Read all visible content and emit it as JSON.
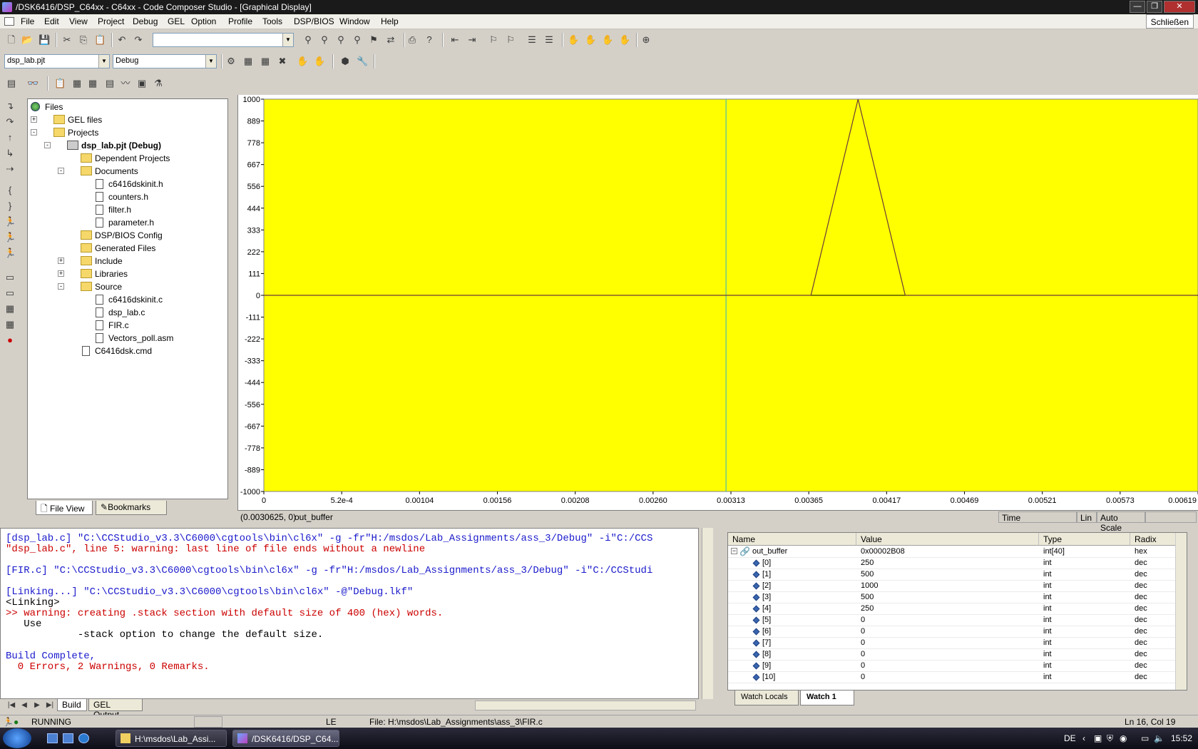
{
  "window": {
    "title": "/DSK6416/DSP_C64xx - C64xx - Code Composer Studio - [Graphical Display]",
    "close_tooltip": "Schließen",
    "min_icon": "minimize-icon",
    "restore_icon": "restore-icon",
    "close_icon": "close-icon"
  },
  "menu": [
    "File",
    "Edit",
    "View",
    "Project",
    "Debug",
    "GEL",
    "Option",
    "Profile",
    "Tools",
    "DSP/BIOS",
    "Window",
    "Help"
  ],
  "toolbar": {
    "search_value": "",
    "project_combo": "dsp_lab.pjt",
    "config_combo": "Debug"
  },
  "file_tree": {
    "root": "Files",
    "nodes": [
      {
        "label": "GEL files",
        "type": "folder",
        "expander": "+"
      },
      {
        "label": "Projects",
        "type": "folder",
        "expander": "-"
      },
      {
        "label": "dsp_lab.pjt (Debug)",
        "type": "project",
        "expander": "-"
      },
      {
        "label": "Dependent Projects",
        "type": "folder",
        "expander": ""
      },
      {
        "label": "Documents",
        "type": "folder",
        "expander": "-"
      },
      {
        "label": "c6416dskinit.h",
        "type": "file",
        "expander": ""
      },
      {
        "label": "counters.h",
        "type": "file",
        "expander": ""
      },
      {
        "label": "filter.h",
        "type": "file",
        "expander": ""
      },
      {
        "label": "parameter.h",
        "type": "file",
        "expander": ""
      },
      {
        "label": "DSP/BIOS Config",
        "type": "folder",
        "expander": ""
      },
      {
        "label": "Generated Files",
        "type": "folder",
        "expander": ""
      },
      {
        "label": "Include",
        "type": "folder",
        "expander": "+"
      },
      {
        "label": "Libraries",
        "type": "folder",
        "expander": "+"
      },
      {
        "label": "Source",
        "type": "folder",
        "expander": "-"
      },
      {
        "label": "c6416dskinit.c",
        "type": "file",
        "expander": ""
      },
      {
        "label": "dsp_lab.c",
        "type": "file",
        "expander": ""
      },
      {
        "label": "FIR.c",
        "type": "file",
        "expander": ""
      },
      {
        "label": "Vectors_poll.asm",
        "type": "file",
        "expander": ""
      },
      {
        "label": "C6416dsk.cmd",
        "type": "file",
        "expander": ""
      }
    ],
    "tabs": [
      "File View",
      "Bookmarks"
    ]
  },
  "chart_data": {
    "type": "line",
    "background": "#ffff00",
    "line_color": "#6b3a3a",
    "cursor_color": "#2db0c8",
    "x_ticks": [
      "0",
      "5.2e-4",
      "0.00104",
      "0.00156",
      "0.00208",
      "0.00260",
      "0.00313",
      "0.00365",
      "0.00417",
      "0.00469",
      "0.00521",
      "0.00573",
      "0.00619"
    ],
    "y_ticks": [
      "1000",
      "889",
      "778",
      "667",
      "556",
      "444",
      "333",
      "222",
      "111",
      "0",
      "-111",
      "-222",
      "-333",
      "-444",
      "-556",
      "-667",
      "-778",
      "-889",
      "-1000"
    ],
    "xlim": [
      0,
      0.00619
    ],
    "ylim": [
      -1000,
      1000
    ],
    "cursor_x": 0.0030625,
    "x": [
      0,
      0.003625,
      0.0037813,
      0.0039375,
      0.0040938,
      0.00425,
      0.0061875
    ],
    "y": [
      0,
      0,
      500,
      1000,
      500,
      0,
      0
    ]
  },
  "graph_status": {
    "cursor_readout": "(0.0030625, 0)",
    "buffer_name": "out_buffer",
    "x_axis_mode": "Time",
    "scale_type": "Lin",
    "scale_mode": "Auto Scale"
  },
  "output": {
    "lines": [
      {
        "text": "[dsp_lab.c] \"C:\\CCStudio_v3.3\\C6000\\cgtools\\bin\\cl6x\" -g -fr\"H:/msdos/Lab_Assignments/ass_3/Debug\" -i\"C:/CCS",
        "color": "blue"
      },
      {
        "text": "\"dsp_lab.c\", line 5: warning: last line of file ends without a newline",
        "color": "red"
      },
      {
        "text": "",
        "color": "black"
      },
      {
        "text": "[FIR.c] \"C:\\CCStudio_v3.3\\C6000\\cgtools\\bin\\cl6x\" -g -fr\"H:/msdos/Lab_Assignments/ass_3/Debug\" -i\"C:/CCStudi",
        "color": "blue"
      },
      {
        "text": "",
        "color": "black"
      },
      {
        "text": "[Linking...] \"C:\\CCStudio_v3.3\\C6000\\cgtools\\bin\\cl6x\" -@\"Debug.lkf\"",
        "color": "blue"
      },
      {
        "text": "<Linking>",
        "color": "black"
      },
      {
        "text": ">> warning: creating .stack section with default size of 400 (hex) words.",
        "color": "red"
      },
      {
        "text": "   Use",
        "color": "black"
      },
      {
        "text": "            -stack option to change the default size.",
        "color": "black"
      },
      {
        "text": "",
        "color": "black"
      },
      {
        "text": "Build Complete,",
        "color": "blue"
      },
      {
        "text": "  0 Errors, 2 Warnings, 0 Remarks.",
        "color": "red"
      }
    ],
    "tabs": [
      "Build",
      "GEL Output"
    ]
  },
  "watch": {
    "headers": [
      "Name",
      "Value",
      "Type",
      "Radix"
    ],
    "rows": [
      {
        "name": "out_buffer",
        "value": "0x00002B08",
        "type": "int[40]",
        "radix": "hex",
        "root": true
      },
      {
        "name": "[0]",
        "value": "250",
        "type": "int",
        "radix": "dec"
      },
      {
        "name": "[1]",
        "value": "500",
        "type": "int",
        "radix": "dec"
      },
      {
        "name": "[2]",
        "value": "1000",
        "type": "int",
        "radix": "dec"
      },
      {
        "name": "[3]",
        "value": "500",
        "type": "int",
        "radix": "dec"
      },
      {
        "name": "[4]",
        "value": "250",
        "type": "int",
        "radix": "dec"
      },
      {
        "name": "[5]",
        "value": "0",
        "type": "int",
        "radix": "dec"
      },
      {
        "name": "[6]",
        "value": "0",
        "type": "int",
        "radix": "dec"
      },
      {
        "name": "[7]",
        "value": "0",
        "type": "int",
        "radix": "dec"
      },
      {
        "name": "[8]",
        "value": "0",
        "type": "int",
        "radix": "dec"
      },
      {
        "name": "[9]",
        "value": "0",
        "type": "int",
        "radix": "dec"
      },
      {
        "name": "[10]",
        "value": "0",
        "type": "int",
        "radix": "dec"
      }
    ],
    "tabs": [
      "Watch Locals",
      "Watch 1"
    ]
  },
  "status": {
    "run_state": "RUNNING",
    "mode": "LE",
    "file": "File: H:\\msdos\\Lab_Assignments\\ass_3\\FIR.c",
    "position": "Ln 16, Col 19"
  },
  "taskbar": {
    "items": [
      "H:\\msdos\\Lab_Assi...",
      "/DSK6416/DSP_C64..."
    ],
    "lang": "DE",
    "time": "15:52"
  }
}
